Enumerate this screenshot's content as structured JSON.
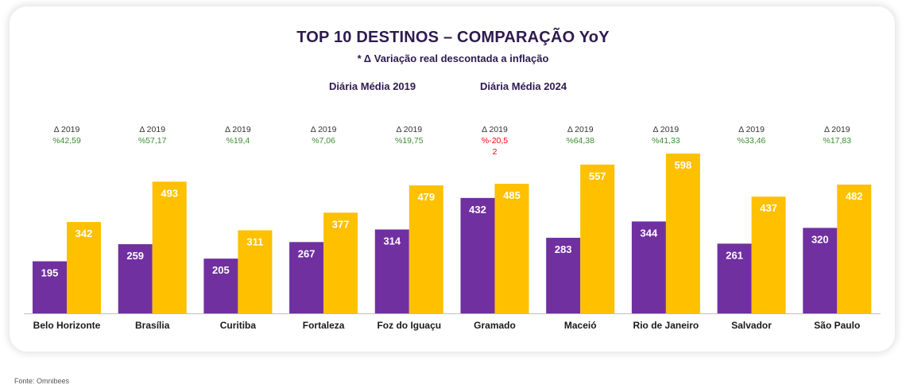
{
  "header": {
    "title": "TOP 10 DESTINOS – COMPARAÇÃO YoY",
    "subtitle": "* Δ Variação real descontada a inflação"
  },
  "legend": [
    "Diária Média 2019",
    "Diária Média 2024"
  ],
  "footer": {
    "source": "Fonte: Omnibees"
  },
  "colors": {
    "series_2019": "#7030a0",
    "series_2024": "#ffc000",
    "positive": "#3a8f2f",
    "negative": "#ff0000",
    "text": "#2e1a4f"
  },
  "chart_data": {
    "type": "bar",
    "title": "TOP 10 DESTINOS – COMPARAÇÃO YoY",
    "subtitle": "* Δ Variação real descontada a inflação",
    "categories": [
      "Belo Horizonte",
      "Brasília",
      "Curitiba",
      "Fortaleza",
      "Foz do Iguaçu",
      "Gramado",
      "Maceió",
      "Rio de Janeiro",
      "Salvador",
      "São Paulo"
    ],
    "series": [
      {
        "name": "Diária Média 2019",
        "values": [
          195,
          259,
          205,
          267,
          314,
          432,
          283,
          344,
          261,
          320
        ]
      },
      {
        "name": "Diária Média 2024",
        "values": [
          342,
          493,
          311,
          377,
          479,
          485,
          557,
          598,
          437,
          482
        ]
      }
    ],
    "delta_label": "Δ 2019",
    "delta_values": [
      "%42,59",
      "%57,17",
      "%19,4",
      "%7,06",
      "%19,75",
      "%-20,52",
      "%64,38",
      "%41,33",
      "%33,46",
      "%17,83"
    ],
    "delta_sign": [
      "pos",
      "pos",
      "pos",
      "pos",
      "pos",
      "neg",
      "pos",
      "pos",
      "pos",
      "pos"
    ],
    "ylim": [
      0,
      620
    ],
    "legend_position": "top",
    "grid": false
  }
}
